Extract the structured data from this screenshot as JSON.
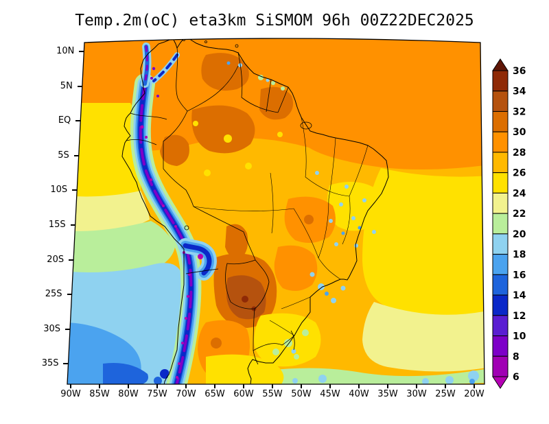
{
  "title": "Temp.2m(oC) eta3km SiSMOM 96h 00Z22DEC2025",
  "chart_data": {
    "type": "heatmap",
    "title": "Temp.2m(oC) eta3km SiSMOM 96h 00Z22DEC2025",
    "region_shown": "South America",
    "x_axis": {
      "tick_labels": [
        "90W",
        "85W",
        "80W",
        "75W",
        "70W",
        "65W",
        "60W",
        "55W",
        "50W",
        "45W",
        "40W",
        "35W",
        "30W",
        "25W",
        "20W"
      ]
    },
    "y_axis": {
      "tick_labels": [
        "10N",
        "5N",
        "EQ",
        "5S",
        "10S",
        "15S",
        "20S",
        "25S",
        "30S",
        "35S"
      ]
    },
    "colorbar": {
      "tick_labels": [
        "36",
        "34",
        "32",
        "30",
        "28",
        "26",
        "24",
        "22",
        "20",
        "18",
        "16",
        "14",
        "12",
        "10",
        "8",
        "6"
      ],
      "value_range_shown": [
        6,
        36
      ],
      "has_top_arrow": true,
      "has_bottom_arrow": true,
      "segment_colors_top_to_bottom": [
        "#5f1606",
        "#8f2a06",
        "#b5520e",
        "#dc6e00",
        "#ff9100",
        "#ffb900",
        "#ffe100",
        "#f2f28e",
        "#b9ee9b",
        "#8fd2f0",
        "#4ba3ef",
        "#1e64dc",
        "#0a28c8",
        "#5a1ed2",
        "#7d00c8",
        "#a000b4",
        "#b400b4"
      ]
    }
  }
}
